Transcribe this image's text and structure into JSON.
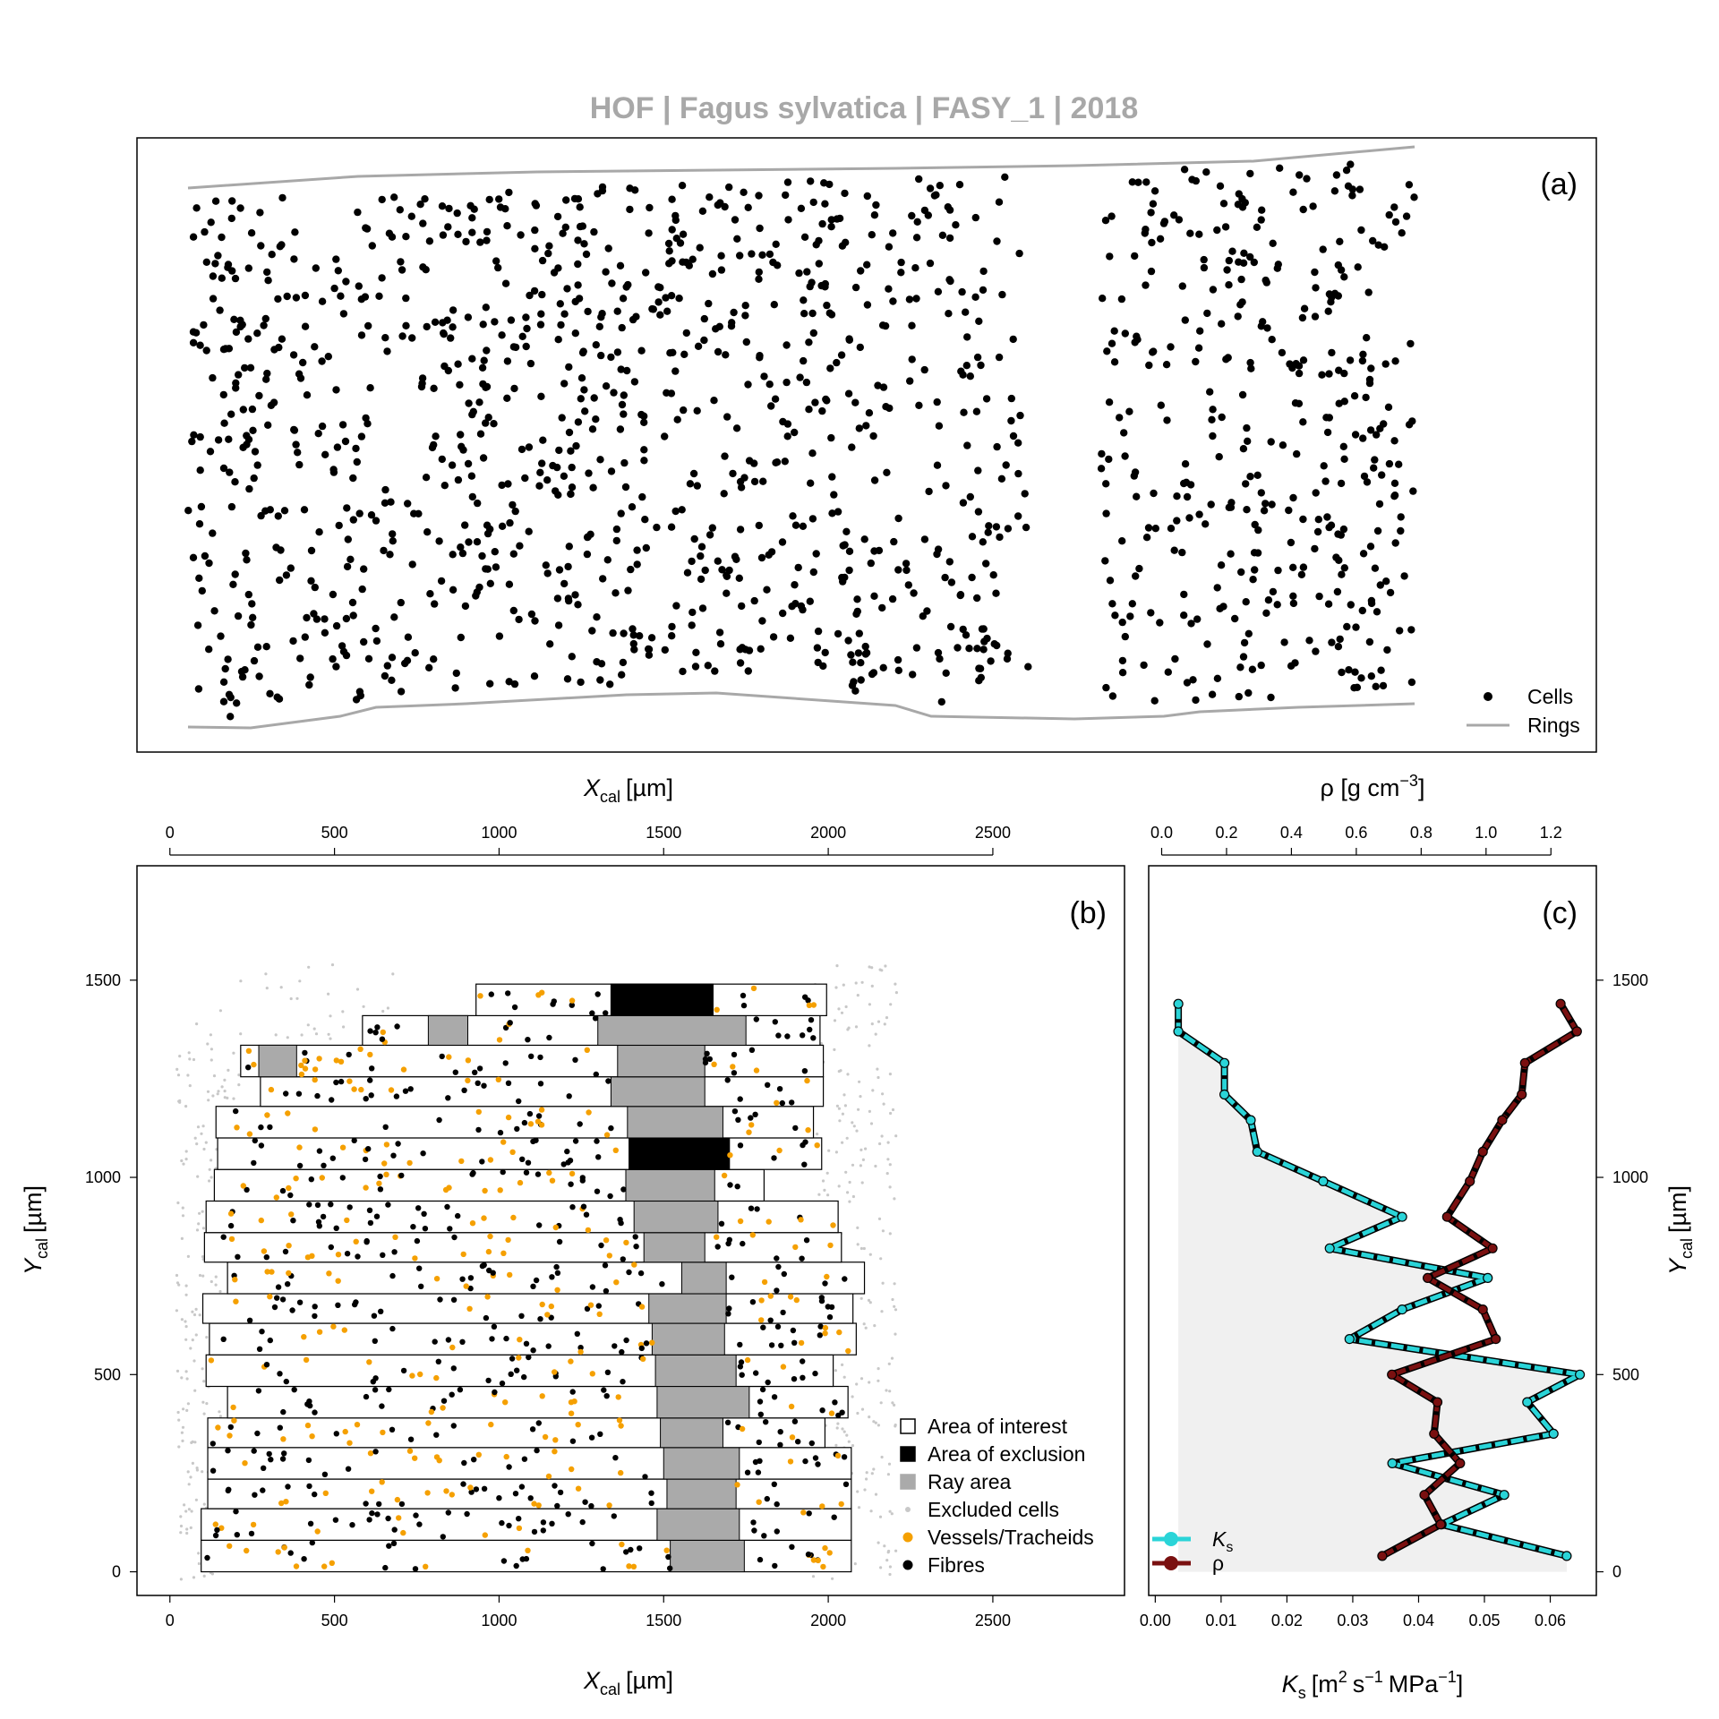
{
  "title": "HOF | Fagus sylvatica | FASY_1 | 2018",
  "colors": {
    "cells": "#000000",
    "rings": "#a8a8a8",
    "vessels": "#f5a000",
    "fibres": "#000000",
    "excluded": "#c8c8c8",
    "ray": "#aaaaaa",
    "exclusion": "#000000",
    "ks_line": "#2ad4d8",
    "rho_line": "#7a1010",
    "ks_fill": "#f0f0f0"
  },
  "chart_data": [
    {
      "panel_label": "(a)",
      "type": "scatter",
      "legend": {
        "position": "bottom-right",
        "entries": [
          "Cells",
          "Rings"
        ]
      }
    },
    {
      "panel_label": "(b)",
      "type": "scatter",
      "xlabel_main": "X",
      "xlabel_sub": "cal",
      "xlabel_unit": "[µm]",
      "ylabel_main": "Y",
      "ylabel_sub": "cal",
      "ylabel_unit": "[µm]",
      "xlim": [
        -100,
        2900
      ],
      "ylim": [
        -60,
        1790
      ],
      "xticks": [
        0,
        500,
        1000,
        1500,
        2000,
        2500
      ],
      "yticks": [
        0,
        500,
        1000,
        1500
      ],
      "legend": {
        "position": "bottom-right",
        "entries": [
          "Area of interest",
          "Area of exclusion",
          "Ray area",
          "Excluded cells",
          "Vessels/Tracheids",
          "Fibres"
        ]
      },
      "rows": [
        {
          "y0": 0,
          "y1": 80,
          "x0": 95,
          "x1": 2070,
          "ray": [
            1520,
            1745
          ]
        },
        {
          "y0": 80,
          "y1": 160,
          "x0": 95,
          "x1": 2070,
          "ray": [
            1480,
            1730
          ]
        },
        {
          "y0": 160,
          "y1": 235,
          "x0": 115,
          "x1": 2070,
          "ray": [
            1510,
            1720
          ]
        },
        {
          "y0": 235,
          "y1": 315,
          "x0": 115,
          "x1": 2070,
          "ray": [
            1500,
            1730
          ]
        },
        {
          "y0": 315,
          "y1": 390,
          "x0": 115,
          "x1": 1990,
          "ray": [
            1490,
            1680
          ]
        },
        {
          "y0": 390,
          "y1": 470,
          "x0": 175,
          "x1": 2060,
          "ray": [
            1480,
            1760
          ]
        },
        {
          "y0": 470,
          "y1": 550,
          "x0": 110,
          "x1": 2015,
          "ray": [
            1475,
            1720
          ]
        },
        {
          "y0": 550,
          "y1": 630,
          "x0": 120,
          "x1": 2085,
          "ray": [
            1465,
            1685
          ]
        },
        {
          "y0": 630,
          "y1": 705,
          "x0": 100,
          "x1": 2075,
          "ray": [
            1455,
            1690
          ]
        },
        {
          "y0": 705,
          "y1": 785,
          "x0": 175,
          "x1": 2110,
          "ray": [
            1555,
            1690
          ]
        },
        {
          "y0": 785,
          "y1": 860,
          "x0": 105,
          "x1": 2040,
          "ray": [
            1440,
            1625
          ]
        },
        {
          "y0": 860,
          "y1": 940,
          "x0": 110,
          "x1": 2030,
          "ray": [
            1410,
            1665
          ]
        },
        {
          "y0": 940,
          "y1": 1020,
          "x0": 135,
          "x1": 1805,
          "ray": [
            1385,
            1655
          ]
        },
        {
          "y0": 1020,
          "y1": 1100,
          "x0": 145,
          "x1": 1980,
          "ray": [
            1395,
            1640
          ],
          "excl": [
            1395,
            1700
          ]
        },
        {
          "y0": 1100,
          "y1": 1180,
          "x0": 140,
          "x1": 1955,
          "ray": [
            1390,
            1680
          ]
        },
        {
          "y0": 1180,
          "y1": 1255,
          "x0": 275,
          "x1": 1985,
          "ray": [
            1340,
            1625
          ]
        },
        {
          "y0": 1255,
          "y1": 1335,
          "x0": 215,
          "x1": 1985,
          "ray": [
            1360,
            1625
          ],
          "ray2": [
            270,
            385
          ]
        },
        {
          "y0": 1335,
          "y1": 1410,
          "x0": 585,
          "x1": 1975,
          "ray": [
            1300,
            1750
          ],
          "ray2": [
            785,
            905
          ]
        },
        {
          "y0": 1410,
          "y1": 1490,
          "x0": 930,
          "x1": 1995,
          "ray": [
            1340,
            1650
          ],
          "excl": [
            1340,
            1650
          ]
        }
      ]
    },
    {
      "panel_label": "(c)",
      "type": "line",
      "top_xlabel": "ρ [g cm",
      "top_xlabel_sup": "−3",
      "top_xlabel_end": "]",
      "bottom_xlabel_main": "K",
      "bottom_xlabel_sub": "s",
      "bottom_xlabel_unit": "[m",
      "bottom_xlabel_sup1": "2",
      "bottom_xlabel_mid": "s",
      "bottom_xlabel_sup2": "−1",
      "bottom_xlabel_mid2": "MPa",
      "bottom_xlabel_sup3": "−1",
      "bottom_xlabel_end": "]",
      "ylabel_main": "Y",
      "ylabel_sub": "cal",
      "ylabel_unit": "[µm]",
      "ks_xlim": [
        -0.001,
        0.067
      ],
      "rho_xlim": [
        -0.04,
        1.34
      ],
      "ks_xticks": [
        "0.00",
        "0.01",
        "0.02",
        "0.03",
        "0.04",
        "0.05",
        "0.06"
      ],
      "rho_xticks": [
        "0.0",
        "0.2",
        "0.4",
        "0.6",
        "0.8",
        "1.0",
        "1.2"
      ],
      "yticks": [
        0,
        500,
        1000,
        1500
      ],
      "legend": {
        "position": "bottom-left",
        "entries": [
          "K",
          "ρ"
        ],
        "entry_subs": [
          "s",
          ""
        ]
      },
      "series": [
        {
          "name": "Ks",
          "y": [
            40,
            120,
            195,
            275,
            350,
            430,
            500,
            590,
            665,
            745,
            820,
            900,
            990,
            1065,
            1145,
            1210,
            1290,
            1370,
            1440
          ],
          "values": [
            0.0625,
            0.0435,
            0.053,
            0.036,
            0.0605,
            0.0565,
            0.0645,
            0.0295,
            0.0375,
            0.0505,
            0.0265,
            0.0375,
            0.0255,
            0.0155,
            0.0145,
            0.0105,
            0.0105,
            0.0035,
            0.0035
          ]
        },
        {
          "name": "ρ",
          "y": [
            40,
            120,
            195,
            275,
            350,
            430,
            500,
            590,
            665,
            745,
            820,
            900,
            990,
            1065,
            1145,
            1210,
            1290,
            1370,
            1440
          ],
          "values": [
            0.68,
            0.86,
            0.81,
            0.92,
            0.84,
            0.85,
            0.71,
            1.03,
            0.99,
            0.82,
            1.02,
            0.88,
            0.95,
            0.99,
            1.05,
            1.11,
            1.12,
            1.28,
            1.23
          ]
        }
      ]
    }
  ]
}
